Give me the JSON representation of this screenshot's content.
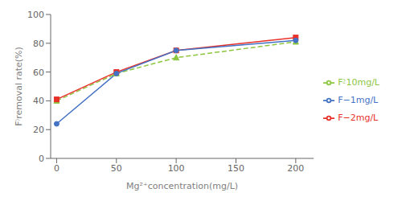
{
  "chart_data": {
    "type": "line",
    "xlabel": "Mg²⁺concentration(mg/L)",
    "ylabel": "F⁾removal rate(%)",
    "x": [
      0,
      50,
      100,
      200
    ],
    "series": [
      {
        "name": "F⁲10mg/L",
        "color": "#8dc63f",
        "line_style": "dashed",
        "marker": "triangle",
        "values": [
          40,
          59,
          70,
          81
        ]
      },
      {
        "name": "F−2mg/L",
        "color": "#e8312a",
        "line_style": "solid",
        "marker": "square",
        "values": [
          41,
          60,
          75,
          84
        ]
      },
      {
        "name": "F−1mg/L",
        "color": "#4472c4",
        "line_style": "solid",
        "marker": "circle",
        "values": [
          24,
          59,
          75,
          82
        ]
      }
    ],
    "xlim": [
      -5,
      215
    ],
    "xticks": [
      0,
      50,
      100,
      150,
      200
    ],
    "ylim": [
      0,
      100
    ],
    "yticks": [
      0,
      20,
      40,
      60,
      80,
      100
    ],
    "grid": false,
    "legend": "right"
  }
}
